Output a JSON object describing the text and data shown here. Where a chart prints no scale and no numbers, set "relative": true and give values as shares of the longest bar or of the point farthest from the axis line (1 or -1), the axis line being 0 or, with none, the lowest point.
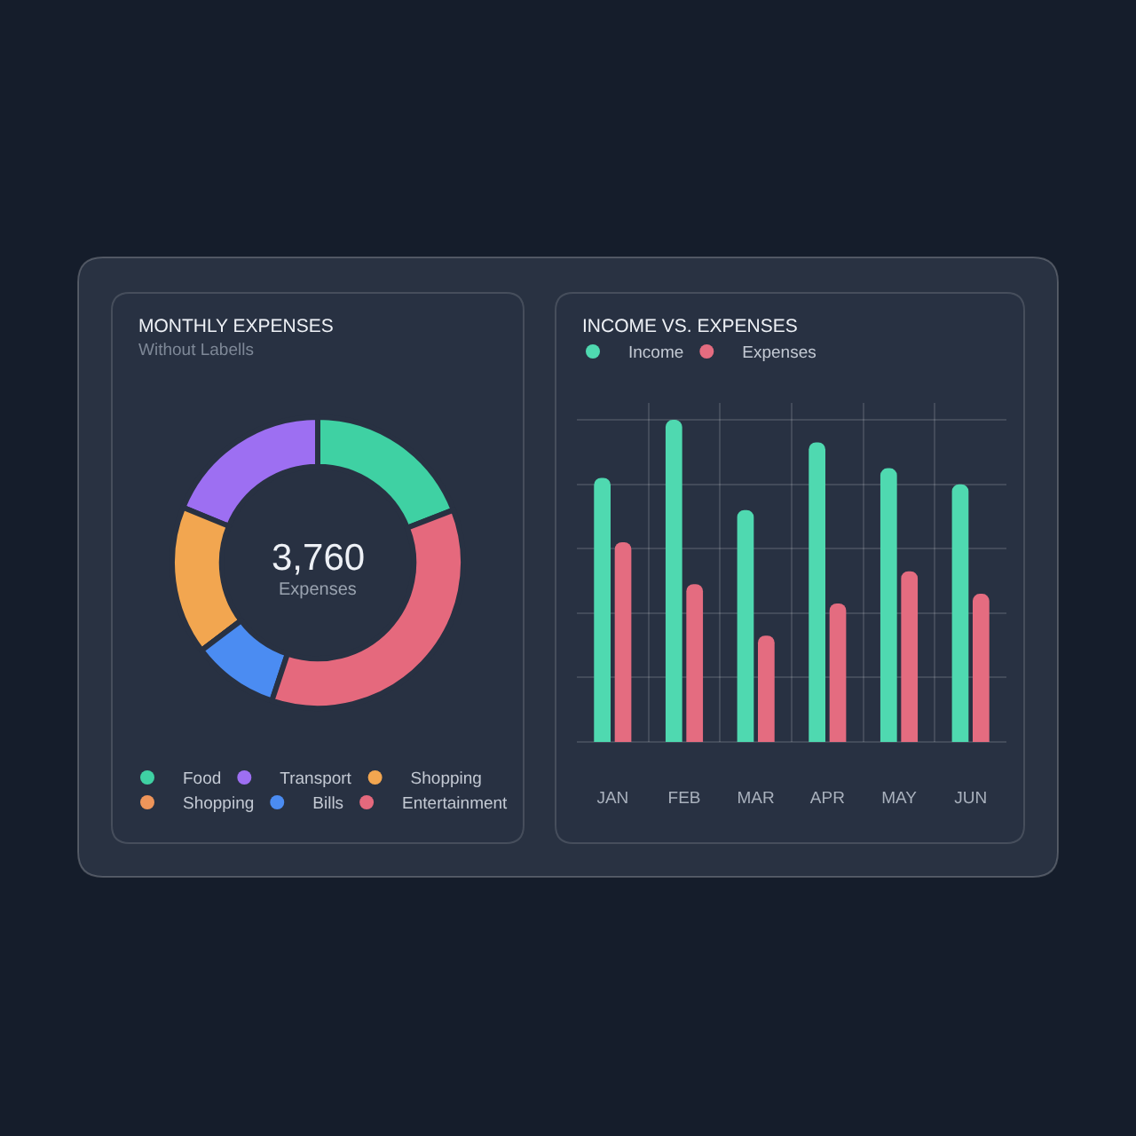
{
  "chart_data": [
    {
      "type": "donut",
      "title": "MONTHLY EXPENSES",
      "subtitle": "Without Labells",
      "categories": [
        "Food",
        "Transport",
        "Shopping",
        "Shopping",
        "Bills",
        "Entertainment"
      ],
      "values": [
        19.1,
        18.8,
        16.5,
        0,
        9.6,
        36.0
      ],
      "colors": [
        "#3fd1a3",
        "#9d6ff2",
        "#f2a650",
        "#ef955a",
        "#4b8cf2",
        "#e5697d"
      ],
      "annotations": [
        "3,760",
        "Expenses"
      ],
      "legend": "bottom"
    },
    {
      "type": "bar",
      "title": "INCOME VS. EXPENSES",
      "categories": [
        "JAN",
        "FEB",
        "MAR",
        "APR",
        "MAY",
        "JUN"
      ],
      "series": [
        {
          "name": "Income",
          "color": "#4fd9b0",
          "values": [
            0.82,
            1.0,
            0.72,
            0.93,
            0.85,
            0.8
          ]
        },
        {
          "name": "Expenses",
          "color": "#e46c80",
          "values": [
            0.62,
            0.49,
            0.33,
            0.43,
            0.53,
            0.46
          ]
        }
      ],
      "relative": true,
      "grid": true,
      "legend": "top left"
    }
  ]
}
